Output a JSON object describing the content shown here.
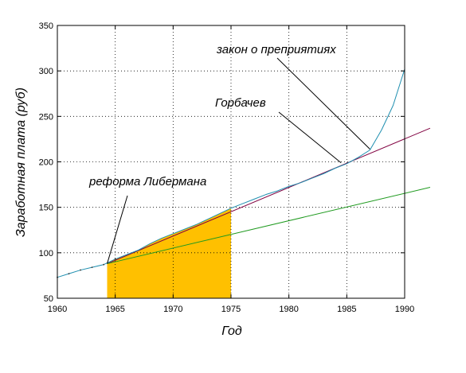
{
  "chart_data": {
    "type": "line",
    "title": "",
    "xlabel": "Год",
    "ylabel": "Заработная плата (руб)",
    "xlim": [
      1960,
      1990
    ],
    "ylim": [
      50,
      350
    ],
    "xticks": [
      1960,
      1965,
      1970,
      1975,
      1980,
      1985,
      1990
    ],
    "yticks": [
      50,
      100,
      150,
      200,
      250,
      300,
      350
    ],
    "grid": true,
    "legend": "none",
    "series": [
      {
        "name": "",
        "color": "#1f8fb0",
        "x": [
          1960,
          1961,
          1962,
          1963,
          1964,
          1965,
          1966,
          1967,
          1968,
          1969,
          1970,
          1971,
          1972,
          1973,
          1974,
          1975,
          1976,
          1977,
          1978,
          1979,
          1980,
          1981,
          1982,
          1983,
          1984,
          1985,
          1986,
          1987,
          1988,
          1989,
          1990
        ],
        "y": [
          73,
          77,
          81,
          84,
          87,
          93,
          98,
          103,
          110,
          116,
          121,
          126,
          131,
          137,
          143,
          149,
          154,
          159,
          164,
          168,
          173,
          177,
          182,
          187,
          193,
          198,
          205,
          213,
          235,
          262,
          302
        ]
      },
      {
        "name": "",
        "color": "#800040",
        "x": [
          1964.3,
          1992.2
        ],
        "y": [
          88,
          237
        ]
      },
      {
        "name": "",
        "color": "#1f9a1f",
        "x": [
          1964.3,
          1992.2
        ],
        "y": [
          88,
          172
        ]
      }
    ],
    "shaded_region": {
      "x_from": 1964.3,
      "x_to": 1975,
      "color": "#ffc000"
    },
    "annotations": [
      {
        "text": "закон о преприятиях",
        "points_to": [
          1987,
          214
        ]
      },
      {
        "text": "Горбачев",
        "points_to": [
          1984.5,
          199
        ]
      },
      {
        "text": "реформа Либермана",
        "points_to": [
          1964.3,
          88
        ]
      }
    ]
  }
}
